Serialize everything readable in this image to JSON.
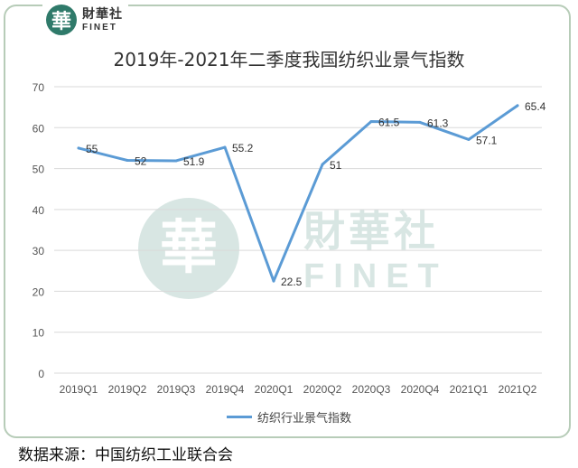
{
  "logo": {
    "seal_char": "華",
    "name_cn": "財華社",
    "name_en": "FINET"
  },
  "watermark": {
    "seal_char": "華",
    "name_cn": "財華社",
    "name_en": "FINET"
  },
  "source_note": "数据来源：中国纺织工业联合会",
  "colors": {
    "line": "#5b9bd5",
    "grid": "#d9d9d9",
    "frame": "#b7ccb8",
    "brand": "#2f7a6a"
  },
  "chart_data": {
    "type": "line",
    "title": "2019年-2021年二季度我国纺织业景气指数",
    "xlabel": "",
    "ylabel": "",
    "categories": [
      "2019Q1",
      "2019Q2",
      "2019Q3",
      "2019Q4",
      "2020Q1",
      "2020Q2",
      "2020Q3",
      "2020Q4",
      "2021Q1",
      "2021Q2"
    ],
    "series": [
      {
        "name": "纺织行业景气指数",
        "values": [
          55,
          52,
          51.9,
          55.2,
          22.5,
          51,
          61.5,
          61.3,
          57.1,
          65.4
        ],
        "labels": [
          "55",
          "52",
          "51.9",
          "55.2",
          "22.5",
          "51",
          "61.5",
          "61.3",
          "57.1",
          "65.4"
        ]
      }
    ],
    "ylim": [
      0,
      70
    ],
    "yticks": [
      0,
      10,
      20,
      30,
      40,
      50,
      60,
      70
    ],
    "grid": true,
    "legend": "bottom"
  }
}
